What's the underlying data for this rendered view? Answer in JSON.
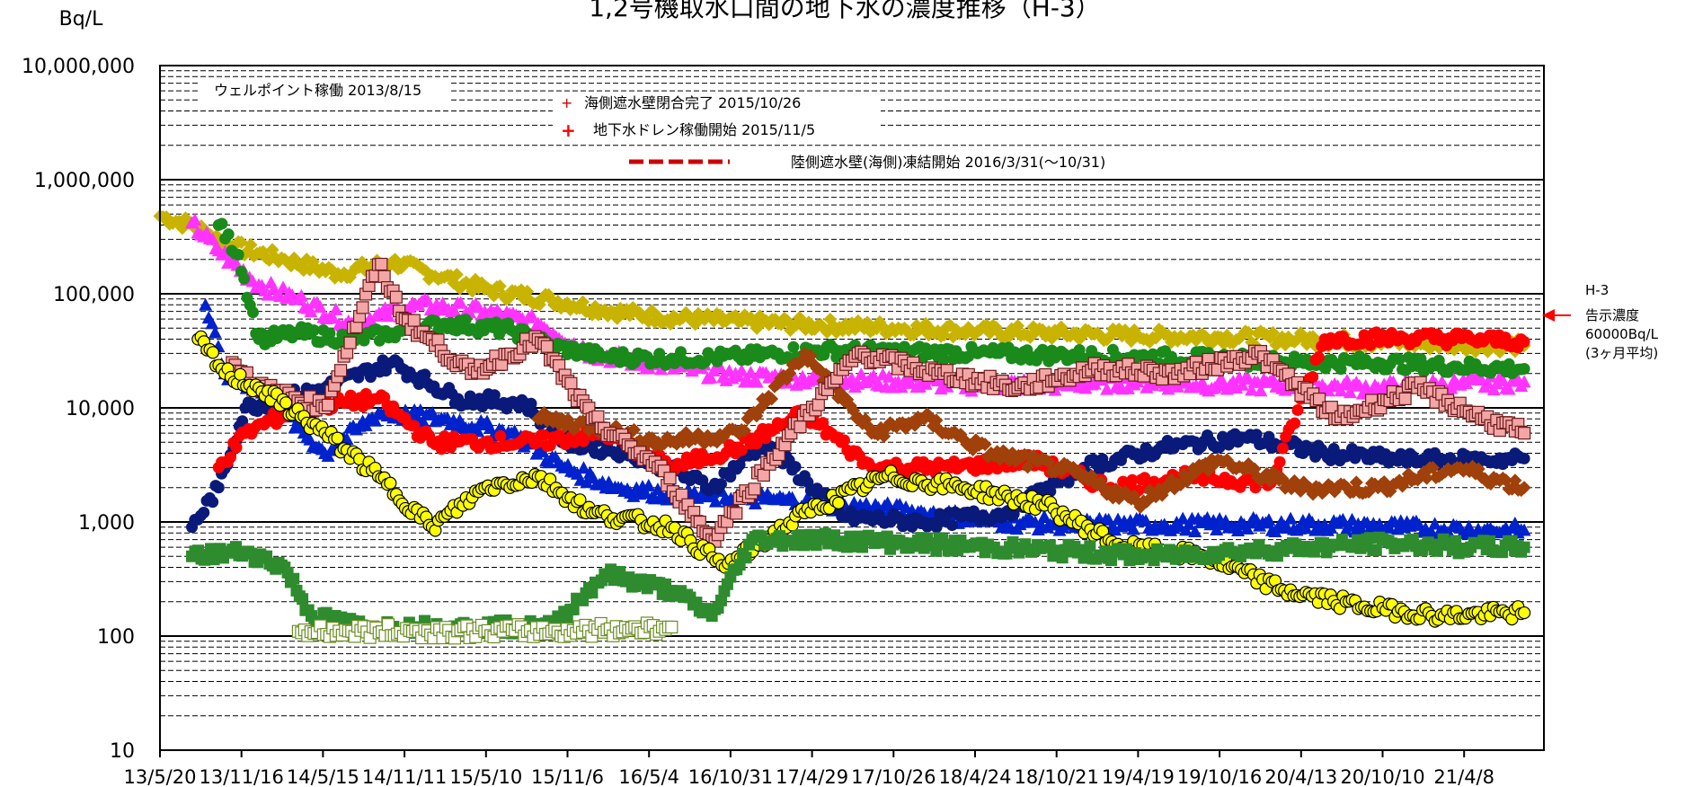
{
  "chart_data": {
    "type": "scatter",
    "title": "1,2号機取水口間の地下水の濃度推移（H-3）",
    "ylabel": "Bq/L",
    "yscale": "log",
    "ylim": [
      10,
      10000000
    ],
    "y_ticks": [
      "10,000,000",
      "1,000,000",
      "100,000",
      "10,000",
      "1,000",
      "100",
      "10"
    ],
    "xlim": [
      "2013-05-20",
      "2022-01-15"
    ],
    "x_ticks": [
      "13/5/20",
      "13/11/16",
      "14/5/15",
      "14/11/11",
      "15/5/10",
      "15/11/6",
      "16/5/4",
      "16/10/31",
      "17/4/29",
      "17/10/26",
      "18/4/24",
      "18/10/21",
      "19/4/19",
      "19/10/16",
      "20/4/13",
      "20/10/10",
      "21/4/8"
    ],
    "annotations": [
      "ウェルポイント稼働 2013/8/15",
      "海側遮水壁閉合完了 2015/10/26",
      "地下水ドレン稼働開始 2015/11/5",
      "陸側遮水壁(海側)凍結開始 2016/3/31(～10/31)"
    ],
    "legend_placement": "top-left",
    "limit_note": [
      "H-3",
      "告示濃度",
      "60000Bq/L",
      "(3ヶ月平均)"
    ],
    "series": [
      {
        "color": "#c8b400",
        "marker": "diamond",
        "x": [
          "2013-05-20",
          "2013-08-01",
          "2013-11-01",
          "2014-03-01",
          "2014-07-01",
          "2014-11-01",
          "2015-03-01",
          "2015-06-01",
          "2015-11-01",
          "2016-03-01",
          "2016-07-01",
          "2017-01-01",
          "2017-07-01",
          "2018-01-01",
          "2018-07-01",
          "2019-01-01",
          "2019-07-01",
          "2020-01-01",
          "2020-07-01",
          "2021-01-01",
          "2021-07-01",
          "2021-12-01"
        ],
        "y": [
          480000,
          400000,
          260000,
          200000,
          150000,
          190000,
          140000,
          110000,
          88000,
          72000,
          63000,
          57000,
          53000,
          50000,
          47000,
          45000,
          43000,
          42000,
          40000,
          38000,
          36000,
          35000
        ]
      },
      {
        "color": "#ff33ff",
        "marker": "triangle",
        "x": [
          "2013-08-01",
          "2013-10-01",
          "2014-01-01",
          "2014-04-01",
          "2014-08-01",
          "2015-01-01",
          "2015-06-01",
          "2015-10-01",
          "2016-02-01",
          "2016-07-01",
          "2017-01-01",
          "2017-07-01",
          "2018-01-01",
          "2018-07-01",
          "2019-01-01",
          "2019-07-01",
          "2020-01-01",
          "2020-07-01",
          "2021-01-01",
          "2021-07-01",
          "2021-12-01"
        ],
        "y": [
          420000,
          240000,
          120000,
          90000,
          55000,
          80000,
          70000,
          55000,
          30000,
          24000,
          19000,
          18000,
          17000,
          16000,
          16000,
          17000,
          16000,
          16000,
          15000,
          16000,
          17000
        ]
      },
      {
        "color": "#1a8a1a",
        "marker": "circle",
        "x": [
          "2013-10-01",
          "2013-11-15",
          "2014-01-01",
          "2014-04-01",
          "2014-08-01",
          "2014-11-01",
          "2015-03-01",
          "2015-08-01",
          "2015-11-01",
          "2016-03-01",
          "2016-08-01",
          "2017-01-01",
          "2017-07-01",
          "2018-01-01",
          "2018-07-01",
          "2019-01-01",
          "2019-07-01",
          "2020-01-01",
          "2020-07-01",
          "2021-01-01",
          "2021-07-01",
          "2021-12-01"
        ],
        "y": [
          400000,
          220000,
          40000,
          45000,
          40000,
          45000,
          55000,
          48000,
          35000,
          28000,
          27000,
          28000,
          32000,
          31000,
          30000,
          29000,
          28000,
          27000,
          25000,
          25000,
          23000,
          22000
        ]
      },
      {
        "color": "#0022cc",
        "marker": "triangle",
        "x": [
          "2013-09-01",
          "2013-10-15",
          "2014-01-01",
          "2014-06-01",
          "2014-10-01",
          "2015-03-01",
          "2015-08-01",
          "2015-12-01",
          "2016-04-01",
          "2016-09-01",
          "2017-03-01",
          "2017-09-01",
          "2018-03-01",
          "2018-09-01",
          "2019-03-01",
          "2019-09-01",
          "2020-03-01",
          "2020-09-01",
          "2021-03-01",
          "2021-09-01",
          "2021-12-01"
        ],
        "y": [
          80000,
          20000,
          15000,
          4000,
          9000,
          8000,
          6000,
          3000,
          2000,
          1700,
          1600,
          1400,
          1200,
          1000,
          950,
          950,
          950,
          950,
          900,
          850,
          850
        ]
      },
      {
        "color": "#0a1a7a",
        "marker": "circle",
        "x": [
          "2013-08-01",
          "2013-10-01",
          "2013-12-01",
          "2014-06-01",
          "2014-11-01",
          "2015-04-01",
          "2015-09-01",
          "2015-12-01",
          "2016-05-01",
          "2016-11-01",
          "2017-03-01",
          "2017-09-01",
          "2018-03-01",
          "2018-09-01",
          "2019-03-01",
          "2019-09-01",
          "2020-03-01",
          "2020-09-01",
          "2021-03-01",
          "2021-09-01",
          "2021-12-01"
        ],
        "y": [
          900,
          2000,
          10000,
          15000,
          25000,
          12000,
          11000,
          5000,
          4000,
          2000,
          5000,
          1100,
          1000,
          1200,
          3000,
          4500,
          5500,
          4000,
          3500,
          3500,
          3600
        ]
      },
      {
        "color": "#ff0000",
        "marker": "circle",
        "x": [
          "2013-10-01",
          "2013-12-01",
          "2014-04-01",
          "2014-10-01",
          "2015-02-01",
          "2015-06-01",
          "2015-10-01",
          "2016-03-01",
          "2016-08-01",
          "2017-01-01",
          "2017-06-01",
          "2017-11-01",
          "2018-05-01",
          "2018-11-01",
          "2019-05-01",
          "2019-11-01",
          "2020-05-01",
          "2020-09-01",
          "2021-03-01",
          "2021-08-01",
          "2021-12-01"
        ],
        "y": [
          3000,
          6000,
          10000,
          12000,
          5000,
          5000,
          5000,
          6000,
          3000,
          4500,
          9000,
          3000,
          3000,
          3500,
          2000,
          2500,
          2200,
          40000,
          41000,
          40000,
          38000
        ]
      },
      {
        "color": "#a0400a",
        "marker": "diamond",
        "x": [
          "2015-10-01",
          "2016-02-01",
          "2016-07-01",
          "2017-01-01",
          "2017-06-01",
          "2017-11-01",
          "2018-03-01",
          "2018-08-01",
          "2019-01-01",
          "2019-07-01",
          "2020-01-01",
          "2020-07-01",
          "2021-01-01",
          "2021-07-01",
          "2021-12-01"
        ],
        "y": [
          8000,
          7000,
          5000,
          6000,
          30000,
          6000,
          8000,
          4000,
          3000,
          1500,
          3500,
          2000,
          2000,
          3000,
          2000
        ]
      },
      {
        "color": "#f4a6a6",
        "stroke": "#6b1a1a",
        "marker": "square",
        "x": [
          "2013-11-01",
          "2014-01-01",
          "2014-06-01",
          "2014-10-01",
          "2014-12-01",
          "2015-05-01",
          "2015-10-01",
          "2016-02-01",
          "2016-07-01",
          "2016-11-01",
          "2017-05-01",
          "2017-10-01",
          "2018-04-01",
          "2018-10-01",
          "2019-04-01",
          "2019-10-01",
          "2020-04-01",
          "2020-10-01",
          "2021-04-01",
          "2021-09-01",
          "2021-12-01"
        ],
        "y": [
          25000,
          15000,
          10000,
          180000,
          60000,
          20000,
          40000,
          8000,
          3000,
          700,
          6000,
          30000,
          20000,
          15000,
          22000,
          20000,
          30000,
          8000,
          15000,
          8000,
          6000
        ]
      },
      {
        "color": "#ffff00",
        "stroke": "#000000",
        "marker": "circle",
        "x": [
          "2013-08-15",
          "2013-10-15",
          "2014-01-01",
          "2014-06-01",
          "2014-10-01",
          "2015-02-01",
          "2015-06-01",
          "2015-10-01",
          "2016-02-01",
          "2016-08-01",
          "2016-12-01",
          "2017-06-01",
          "2017-12-01",
          "2018-06-01",
          "2018-12-01",
          "2019-06-01",
          "2019-12-01",
          "2020-06-01",
          "2020-12-01",
          "2021-06-01",
          "2021-12-01"
        ],
        "y": [
          40000,
          20000,
          15000,
          6000,
          2500,
          900,
          2000,
          2500,
          1200,
          900,
          400,
          1200,
          2500,
          2000,
          1400,
          600,
          500,
          250,
          180,
          150,
          160
        ]
      },
      {
        "color": "#2e8b2e",
        "marker": "square",
        "x": [
          "2013-08-01",
          "2013-12-01",
          "2014-03-01",
          "2014-05-01",
          "2014-09-01",
          "2015-01-01",
          "2015-06-01",
          "2015-11-01",
          "2016-03-01",
          "2016-08-01",
          "2016-11-01",
          "2017-02-01",
          "2017-08-01",
          "2018-02-01",
          "2018-08-01",
          "2019-02-01",
          "2019-08-01",
          "2020-02-01",
          "2020-08-01",
          "2021-02-01",
          "2021-08-01",
          "2021-12-01"
        ],
        "y": [
          500,
          550,
          400,
          150,
          120,
          120,
          120,
          120,
          350,
          250,
          150,
          700,
          700,
          650,
          600,
          550,
          500,
          550,
          600,
          650,
          600,
          600
        ]
      },
      {
        "color": "#ffffff",
        "stroke": "#6b8e23",
        "marker": "square",
        "x": [
          "2014-04-01",
          "2014-08-01",
          "2015-01-01",
          "2015-06-01",
          "2015-11-01",
          "2016-08-01"
        ],
        "y": [
          110,
          110,
          110,
          110,
          110,
          120
        ]
      }
    ]
  }
}
